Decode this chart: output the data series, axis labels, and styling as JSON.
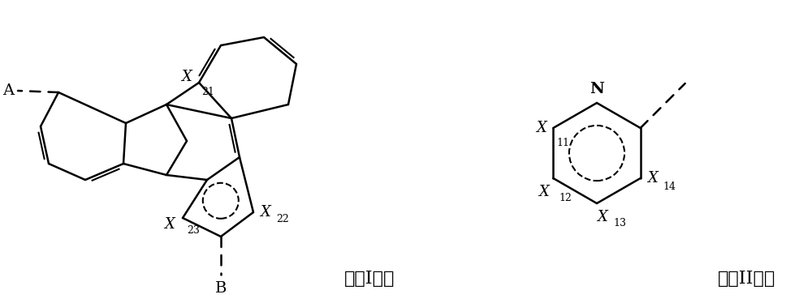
{
  "bg_color": "#ffffff",
  "line_color": "#000000",
  "dashed_color": "#000000",
  "label_I": "式（I），",
  "label_II": "式（II），",
  "label_A": "A",
  "label_B": "B",
  "label_X21": "X",
  "label_X21_sub": "21",
  "label_X22": "X",
  "label_X22_sub": "22",
  "label_X23": "X",
  "label_X23_sub": "23",
  "label_N": "N",
  "label_X11": "X",
  "label_X11_sub": "11",
  "label_X12": "X",
  "label_X12_sub": "12",
  "label_X13": "X",
  "label_X13_sub": "13",
  "label_X14": "X",
  "label_X14_sub": "14"
}
